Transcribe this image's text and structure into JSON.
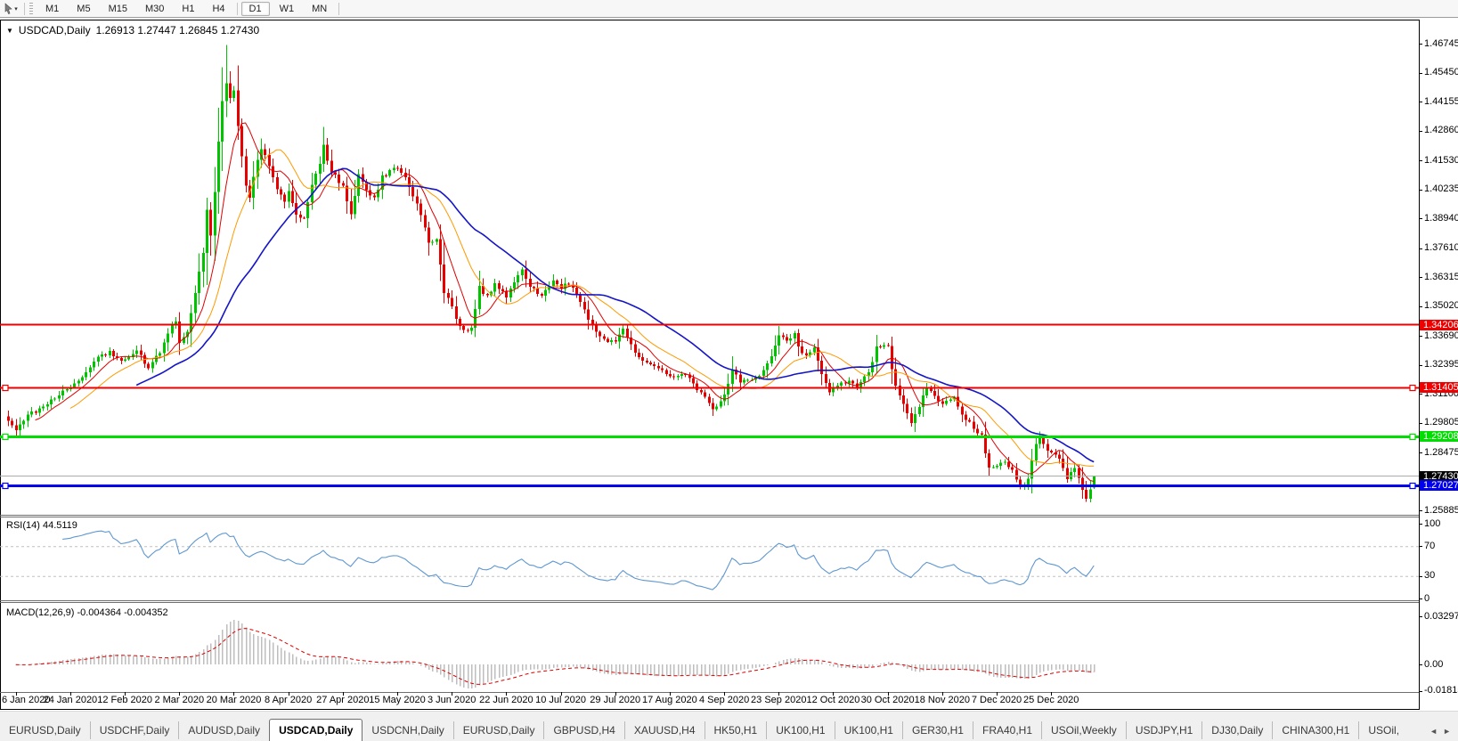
{
  "toolbar": {
    "chart_tool_icon": "cursor-icon",
    "dropdown_icon": "chevron-down-icon",
    "timeframes": [
      "M1",
      "M5",
      "M15",
      "M30",
      "H1",
      "H4",
      "D1",
      "W1",
      "MN"
    ],
    "active_timeframe": "D1"
  },
  "chart_window": {
    "title_symbol": "USDCAD,Daily",
    "title_ohlc": "1.26913 1.27447 1.26845 1.27430",
    "collapse_icon": "▼",
    "price_axis_labels": [
      "1.46745",
      "1.45450",
      "1.44155",
      "1.42860",
      "1.41530",
      "1.40235",
      "1.38940",
      "1.37610",
      "1.36315",
      "1.35020",
      "1.33690",
      "1.32395",
      "1.31100",
      "1.29805",
      "1.28475",
      "1.25885"
    ],
    "date_axis_labels": [
      "6 Jan 2020",
      "24 Jan 2020",
      "12 Feb 2020",
      "2 Mar 2020",
      "20 Mar 2020",
      "8 Apr 2020",
      "27 Apr 2020",
      "15 May 2020",
      "3 Jun 2020",
      "22 Jun 2020",
      "10 Jul 2020",
      "29 Jul 2020",
      "17 Aug 2020",
      "4 Sep 2020",
      "23 Sep 2020",
      "12 Oct 2020",
      "30 Oct 2020",
      "18 Nov 2020",
      "7 Dec 2020",
      "25 Dec 2020"
    ],
    "price_tags": [
      {
        "text": "1.34206",
        "bg": "#ee0000",
        "fg": "#ffffff"
      },
      {
        "text": "1.31405",
        "bg": "#ee0000",
        "fg": "#ffffff"
      },
      {
        "text": "1.29208",
        "bg": "#00dd00",
        "fg": "#ffffff"
      },
      {
        "text": "1.27430",
        "bg": "#000000",
        "fg": "#ffffff"
      },
      {
        "text": "1.27027",
        "bg": "#0000ee",
        "fg": "#ffffff"
      }
    ]
  },
  "rsi_panel": {
    "label": "RSI(14) 44.5119",
    "axis_labels": [
      "100",
      "70",
      "30",
      "0"
    ],
    "level_lines": [
      70,
      30
    ],
    "line_color": "#5e97d0"
  },
  "macd_panel": {
    "label": "MACD(12,26,9) -0.004364 -0.004352",
    "axis_labels": [
      "0.032972",
      "0.00",
      "-0.018154"
    ],
    "histogram_color": "#bebebe",
    "signal_color": "#e00000"
  },
  "tabs": {
    "items": [
      "EURUSD,Daily",
      "USDCHF,Daily",
      "AUDUSD,Daily",
      "USDCAD,Daily",
      "USDCNH,Daily",
      "EURUSD,Daily",
      "GBPUSD,H4",
      "XAUUSD,H4",
      "HK50,H1",
      "UK100,H1",
      "UK100,H1",
      "GER30,H1",
      "FRA40,H1",
      "USOil,Weekly",
      "USDJPY,H1",
      "DJ30,Daily",
      "CHINA300,H1",
      "USOil,"
    ],
    "active_index": 3,
    "scroll_left": "◄",
    "scroll_right": "►"
  },
  "chart_data": {
    "type": "candlestick",
    "symbol": "USDCAD",
    "timeframe": "Daily",
    "title": "USDCAD,Daily",
    "current_ohlc": {
      "open": 1.26913,
      "high": 1.27447,
      "low": 1.26845,
      "close": 1.2743
    },
    "up_color": "#00c400",
    "down_color": "#e60000",
    "y_axis": {
      "top": 1.4778,
      "bottom": 1.25698,
      "tick_values": [
        1.46745,
        1.4545,
        1.44155,
        1.4286,
        1.4153,
        1.40235,
        1.3894,
        1.3761,
        1.36315,
        1.3502,
        1.3369,
        1.32395,
        1.311,
        1.29805,
        1.28475,
        1.25885
      ]
    },
    "x_axis": {
      "labels": [
        "6 Jan 2020",
        "24 Jan 2020",
        "12 Feb 2020",
        "2 Mar 2020",
        "20 Mar 2020",
        "8 Apr 2020",
        "27 Apr 2020",
        "15 May 2020",
        "3 Jun 2020",
        "22 Jun 2020",
        "10 Jul 2020",
        "29 Jul 2020",
        "17 Aug 2020",
        "4 Sep 2020",
        "23 Sep 2020",
        "12 Oct 2020",
        "30 Oct 2020",
        "18 Nov 2020",
        "7 Dec 2020",
        "25 Dec 2020"
      ],
      "first_label_candle_index": 2,
      "candles_per_label": 14,
      "total_candles": 280
    },
    "horizontal_lines": [
      {
        "price": 1.34206,
        "color": "#ee0000",
        "width": 2,
        "handles": false
      },
      {
        "price": 1.31405,
        "color": "#ee0000",
        "width": 2,
        "handles": true
      },
      {
        "price": 1.29208,
        "color": "#00dd00",
        "width": 3,
        "handles": true
      },
      {
        "price": 1.27027,
        "color": "#0000ee",
        "width": 3,
        "handles": true
      }
    ],
    "current_price_line": {
      "price": 1.2743,
      "color": "#ababab"
    },
    "close_anchors": [
      [
        0,
        1.2995
      ],
      [
        2,
        1.2958
      ],
      [
        6,
        1.3025
      ],
      [
        10,
        1.3062
      ],
      [
        13,
        1.3105
      ],
      [
        16,
        1.3135
      ],
      [
        19,
        1.318
      ],
      [
        22,
        1.3255
      ],
      [
        26,
        1.33
      ],
      [
        30,
        1.3255
      ],
      [
        33,
        1.3295
      ],
      [
        36,
        1.3232
      ],
      [
        39,
        1.329
      ],
      [
        41,
        1.338
      ],
      [
        43,
        1.343
      ],
      [
        44,
        1.333
      ],
      [
        46,
        1.339
      ],
      [
        48,
        1.356
      ],
      [
        50,
        1.374
      ],
      [
        51,
        1.393
      ],
      [
        52,
        1.381
      ],
      [
        53,
        1.402
      ],
      [
        54,
        1.423
      ],
      [
        55,
        1.442
      ],
      [
        56,
        1.45
      ],
      [
        57,
        1.443
      ],
      [
        58,
        1.4475
      ],
      [
        59,
        1.43
      ],
      [
        60,
        1.418
      ],
      [
        61,
        1.403
      ],
      [
        62,
        1.3985
      ],
      [
        63,
        1.409
      ],
      [
        65,
        1.4205
      ],
      [
        67,
        1.413
      ],
      [
        69,
        1.4015
      ],
      [
        71,
        1.3975
      ],
      [
        72,
        1.401
      ],
      [
        74,
        1.3905
      ],
      [
        76,
        1.3895
      ],
      [
        78,
        1.404
      ],
      [
        80,
        1.4135
      ],
      [
        81,
        1.4215
      ],
      [
        83,
        1.4105
      ],
      [
        85,
        1.4055
      ],
      [
        86,
        1.403
      ],
      [
        88,
        1.3905
      ],
      [
        90,
        1.4085
      ],
      [
        92,
        1.403
      ],
      [
        94,
        1.398
      ],
      [
        96,
        1.4075
      ],
      [
        98,
        1.411
      ],
      [
        100,
        1.412
      ],
      [
        102,
        1.4075
      ],
      [
        104,
        1.3985
      ],
      [
        106,
        1.3915
      ],
      [
        108,
        1.378
      ],
      [
        110,
        1.379
      ],
      [
        112,
        1.3565
      ],
      [
        114,
        1.3495
      ],
      [
        116,
        1.3415
      ],
      [
        117,
        1.3385
      ],
      [
        119,
        1.341
      ],
      [
        121,
        1.359
      ],
      [
        123,
        1.3545
      ],
      [
        125,
        1.3605
      ],
      [
        127,
        1.3565
      ],
      [
        128,
        1.355
      ],
      [
        130,
        1.36
      ],
      [
        132,
        1.3675
      ],
      [
        134,
        1.3578
      ],
      [
        137,
        1.3558
      ],
      [
        140,
        1.3608
      ],
      [
        142,
        1.3588
      ],
      [
        144,
        1.361
      ],
      [
        147,
        1.3528
      ],
      [
        149,
        1.3448
      ],
      [
        151,
        1.3388
      ],
      [
        153,
        1.3348
      ],
      [
        156,
        1.3338
      ],
      [
        158,
        1.3408
      ],
      [
        160,
        1.3328
      ],
      [
        162,
        1.3268
      ],
      [
        165,
        1.3248
      ],
      [
        168,
        1.3218
      ],
      [
        170,
        1.3178
      ],
      [
        173,
        1.3208
      ],
      [
        176,
        1.3158
      ],
      [
        179,
        1.3088
      ],
      [
        181,
        1.3038
      ],
      [
        184,
        1.3098
      ],
      [
        186,
        1.3228
      ],
      [
        188,
        1.3158
      ],
      [
        191,
        1.3178
      ],
      [
        193,
        1.3198
      ],
      [
        195,
        1.3238
      ],
      [
        197,
        1.3328
      ],
      [
        198,
        1.3378
      ],
      [
        200,
        1.3348
      ],
      [
        202,
        1.3378
      ],
      [
        203,
        1.3318
      ],
      [
        205,
        1.3278
      ],
      [
        207,
        1.3308
      ],
      [
        209,
        1.3188
      ],
      [
        211,
        1.3118
      ],
      [
        213,
        1.3138
      ],
      [
        216,
        1.3178
      ],
      [
        218,
        1.3138
      ],
      [
        221,
        1.3208
      ],
      [
        223,
        1.3318
      ],
      [
        224,
        1.3328
      ],
      [
        226,
        1.3318
      ],
      [
        228,
        1.3138
      ],
      [
        230,
        1.3058
      ],
      [
        232,
        1.2988
      ],
      [
        234,
        1.3058
      ],
      [
        236,
        1.3138
      ],
      [
        239,
        1.3078
      ],
      [
        240,
        1.3068
      ],
      [
        243,
        1.3088
      ],
      [
        246,
        1.2998
      ],
      [
        248,
        1.2958
      ],
      [
        250,
        1.2928
      ],
      [
        252,
        1.2778
      ],
      [
        254,
        1.2798
      ],
      [
        256,
        1.2808
      ],
      [
        258,
        1.2768
      ],
      [
        260,
        1.2698
      ],
      [
        262,
        1.2728
      ],
      [
        264,
        1.2878
      ],
      [
        265,
        1.2918
      ],
      [
        266,
        1.2878
      ],
      [
        268,
        1.2838
      ],
      [
        270,
        1.2828
      ],
      [
        272,
        1.2728
      ],
      [
        274,
        1.2778
      ],
      [
        276,
        1.2688
      ],
      [
        277,
        1.2638
      ],
      [
        278,
        1.2678
      ],
      [
        279,
        1.2743
      ]
    ],
    "wick_overrides": [
      {
        "index": 56,
        "high": 1.4668
      },
      {
        "index": 277,
        "low": 1.263
      }
    ],
    "noise": 0.0011,
    "seed": 20200106,
    "moving_averages": [
      {
        "period": 8,
        "color": "#e00000",
        "width": 1
      },
      {
        "period": 17,
        "color": "#ff9a00",
        "width": 1
      },
      {
        "period": 34,
        "color": "#1515c8",
        "width": 1.6
      }
    ],
    "rsi": {
      "period": 14,
      "current": 44.5119,
      "range": [
        0,
        100
      ],
      "levels": [
        70,
        30
      ]
    },
    "macd": {
      "fast": 12,
      "slow": 26,
      "signal": 9,
      "current_hist": -0.004364,
      "current_signal": -0.004352,
      "scale_max": 0.032972,
      "scale_min": -0.018154
    }
  }
}
